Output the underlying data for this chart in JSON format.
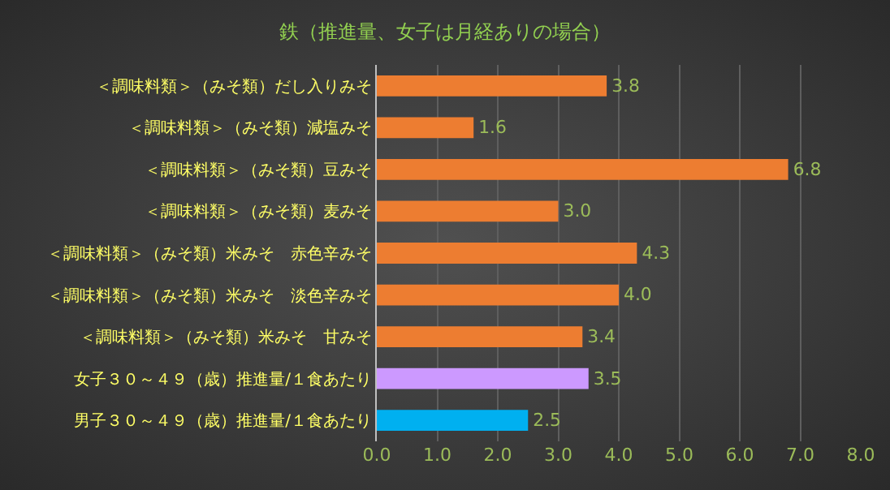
{
  "chart_data": {
    "type": "bar",
    "orientation": "horizontal",
    "title": "鉄（推進量、女子は月経ありの場合）",
    "categories": [
      "＜調味料類＞（みそ類）だし入りみそ",
      "＜調味料類＞（みそ類）減塩みそ",
      "＜調味料類＞（みそ類）豆みそ",
      "＜調味料類＞（みそ類）麦みそ",
      "＜調味料類＞（みそ類）米みそ　赤色辛みそ",
      "＜調味料類＞（みそ類）米みそ　淡色辛みそ",
      "＜調味料類＞（みそ類）米みそ　甘みそ",
      "女子３０～４９（歳）推進量/１食あたり",
      "男子３０～４９（歳）推進量/１食あたり"
    ],
    "values": [
      3.8,
      1.6,
      6.8,
      3.0,
      4.3,
      4.0,
      3.4,
      3.5,
      2.5
    ],
    "colors": [
      "#ed7d31",
      "#ed7d31",
      "#ed7d31",
      "#ed7d31",
      "#ed7d31",
      "#ed7d31",
      "#ed7d31",
      "#cc99ff",
      "#00b0f0"
    ],
    "xlim": [
      0,
      8
    ],
    "xticks": [
      {
        "value": 0,
        "label": "0.0"
      },
      {
        "value": 1,
        "label": "1.0"
      },
      {
        "value": 2,
        "label": "2.0"
      },
      {
        "value": 3,
        "label": "3.0"
      },
      {
        "value": 4,
        "label": "4.0"
      },
      {
        "value": 5,
        "label": "5.0"
      },
      {
        "value": 6,
        "label": "6.0"
      },
      {
        "value": 7,
        "label": "7.0"
      },
      {
        "value": 8,
        "label": "8.0"
      }
    ],
    "value_labels": [
      "3.8",
      "1.6",
      "6.8",
      "3.0",
      "4.3",
      "4.0",
      "3.4",
      "3.5",
      "2.5"
    ],
    "grid": "x"
  }
}
